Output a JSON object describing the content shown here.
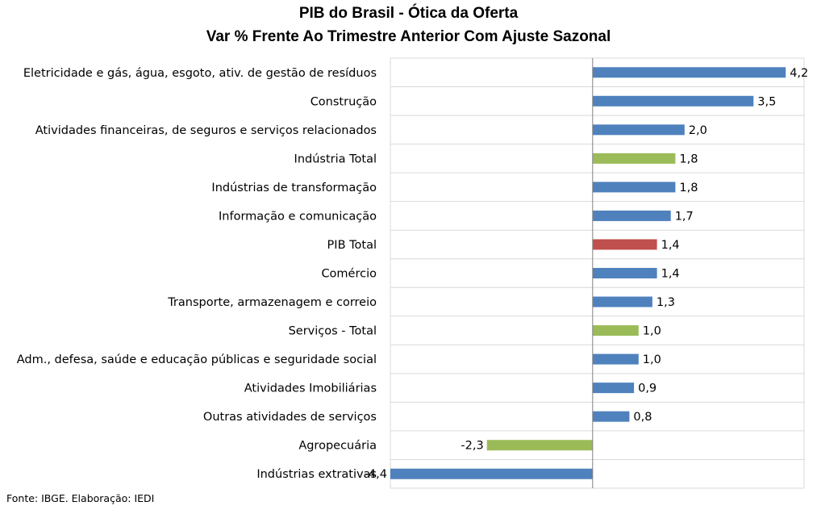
{
  "chart_data": {
    "type": "bar",
    "orientation": "horizontal",
    "title": "PIB do Brasil - Ótica da Oferta",
    "subtitle": "Var % Frente Ao Trimestre Anterior Com Ajuste Sazonal",
    "xlim": [
      -4.4,
      4.6
    ],
    "grid": "horizontal-category-lines",
    "categories": [
      "Eletricidade e gás, água, esgoto, ativ. de gestão de resíduos",
      "Construção",
      "Atividades financeiras, de seguros e serviços relacionados",
      "Indústria Total",
      "Indústrias de transformação",
      "Informação e comunicação ",
      "PIB Total",
      "Comércio",
      "Transporte, armazenagem e correio",
      "Serviços - Total",
      "Adm., defesa, saúde e educação públicas e seguridade social",
      "Atividades Imobiliárias",
      "Outras atividades de serviços",
      "Agropecuária",
      "Indústrias extrativas"
    ],
    "values": [
      4.2,
      3.5,
      2.0,
      1.8,
      1.8,
      1.7,
      1.4,
      1.4,
      1.3,
      1.0,
      1.0,
      0.9,
      0.8,
      -2.3,
      -4.4
    ],
    "value_labels": [
      "4,2",
      "3,5",
      "2,0",
      "1,8",
      "1,8",
      "1,7",
      "1,4",
      "1,4",
      "1,3",
      "1,0",
      "1,0",
      "0,9",
      "0,8",
      "-2,3",
      "-4,4"
    ],
    "bar_colors": [
      "#4F81BD",
      "#4F81BD",
      "#4F81BD",
      "#9BBB59",
      "#4F81BD",
      "#4F81BD",
      "#C0504D",
      "#4F81BD",
      "#4F81BD",
      "#9BBB59",
      "#4F81BD",
      "#4F81BD",
      "#4F81BD",
      "#9BBB59",
      "#4F81BD"
    ]
  },
  "footer": {
    "source": "Fonte: IBGE. Elaboração: IEDI"
  },
  "colors": {
    "default_bar": "#4F81BD",
    "aggregate_bar": "#9BBB59",
    "gdp_bar": "#C0504D",
    "gridline": "#D9D9D9",
    "axis": "#808080"
  }
}
